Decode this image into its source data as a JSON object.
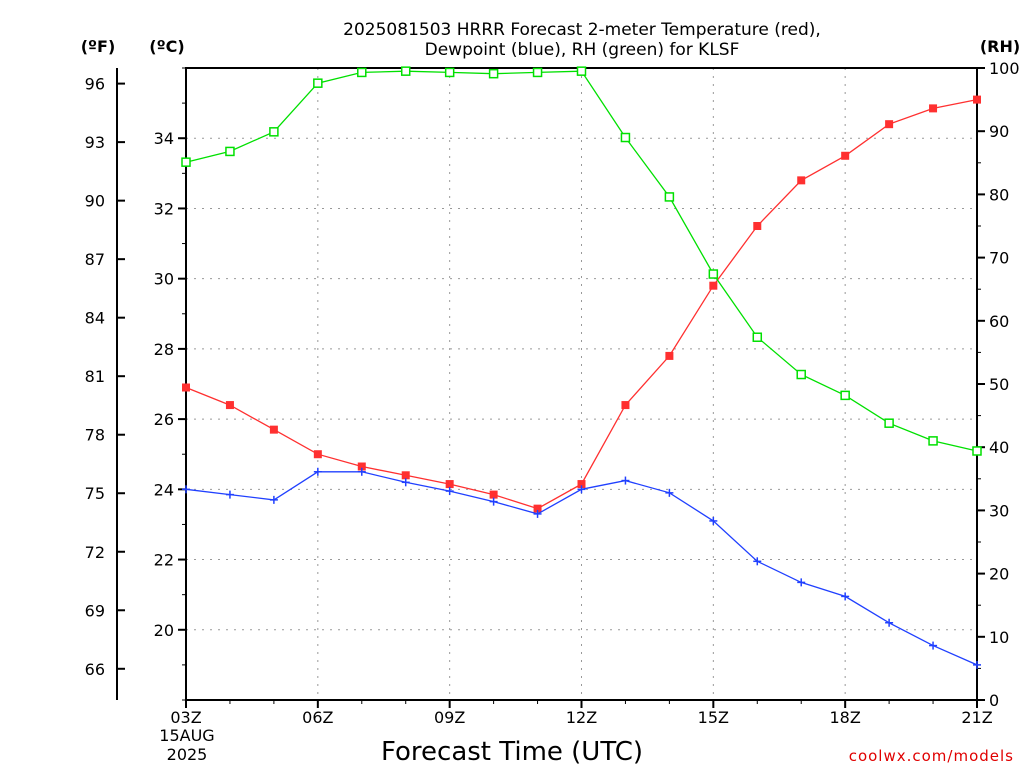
{
  "chart_data": {
    "type": "line",
    "title_line1": "2025081503 HRRR Forecast 2-meter Temperature (red),",
    "title_line2": "Dewpoint (blue), RH (green) for KLSF",
    "xlabel": "Forecast Time (UTC)",
    "credit": "coolwx.com/models",
    "left_unit_f": "(ºF)",
    "left_unit_c": "(ºC)",
    "right_unit": "(RH)",
    "date_line1": "15AUG",
    "date_line2": "2025",
    "x_hours": [
      3,
      4,
      5,
      6,
      7,
      8,
      9,
      10,
      11,
      12,
      13,
      14,
      15,
      16,
      17,
      18,
      19,
      20,
      21
    ],
    "x_ticks": [
      {
        "hour": 3,
        "label": "03Z"
      },
      {
        "hour": 6,
        "label": "06Z"
      },
      {
        "hour": 9,
        "label": "09Z"
      },
      {
        "hour": 12,
        "label": "12Z"
      },
      {
        "hour": 15,
        "label": "15Z"
      },
      {
        "hour": 18,
        "label": "18Z"
      },
      {
        "hour": 21,
        "label": "21Z"
      }
    ],
    "celsius_ticks": [
      "20",
      "22",
      "24",
      "26",
      "28",
      "30",
      "32",
      "34"
    ],
    "fahrenheit_ticks": [
      "66",
      "69",
      "72",
      "75",
      "78",
      "81",
      "84",
      "87",
      "90",
      "93",
      "96"
    ],
    "rh_ticks": [
      "0",
      "10",
      "20",
      "30",
      "40",
      "50",
      "60",
      "70",
      "80",
      "90",
      "100"
    ],
    "celsius_range": [
      18.0,
      36.0
    ],
    "rh_range": [
      0,
      100
    ],
    "series": [
      {
        "name": "Temperature",
        "color": "#ff3030",
        "axis": "celsius",
        "marker": "filled-square",
        "values": [
          26.9,
          26.4,
          25.7,
          25.0,
          24.65,
          24.4,
          24.15,
          23.85,
          23.45,
          24.15,
          26.4,
          27.8,
          29.8,
          31.5,
          32.8,
          33.5,
          34.4,
          34.85,
          35.1
        ]
      },
      {
        "name": "Dewpoint",
        "color": "#2040ff",
        "axis": "celsius",
        "marker": "plus",
        "values": [
          24.0,
          23.85,
          23.7,
          24.5,
          24.5,
          24.2,
          23.95,
          23.65,
          23.3,
          24.0,
          24.25,
          23.9,
          23.1,
          21.95,
          21.35,
          20.95,
          20.2,
          19.55,
          19.0
        ]
      },
      {
        "name": "RH",
        "color": "#00e000",
        "axis": "rh",
        "marker": "open-square",
        "values": [
          85.1,
          86.8,
          89.9,
          97.6,
          99.3,
          99.5,
          99.3,
          99.1,
          99.3,
          99.5,
          89.0,
          79.6,
          67.4,
          57.4,
          51.5,
          48.2,
          43.8,
          41.0,
          39.4
        ]
      }
    ]
  }
}
